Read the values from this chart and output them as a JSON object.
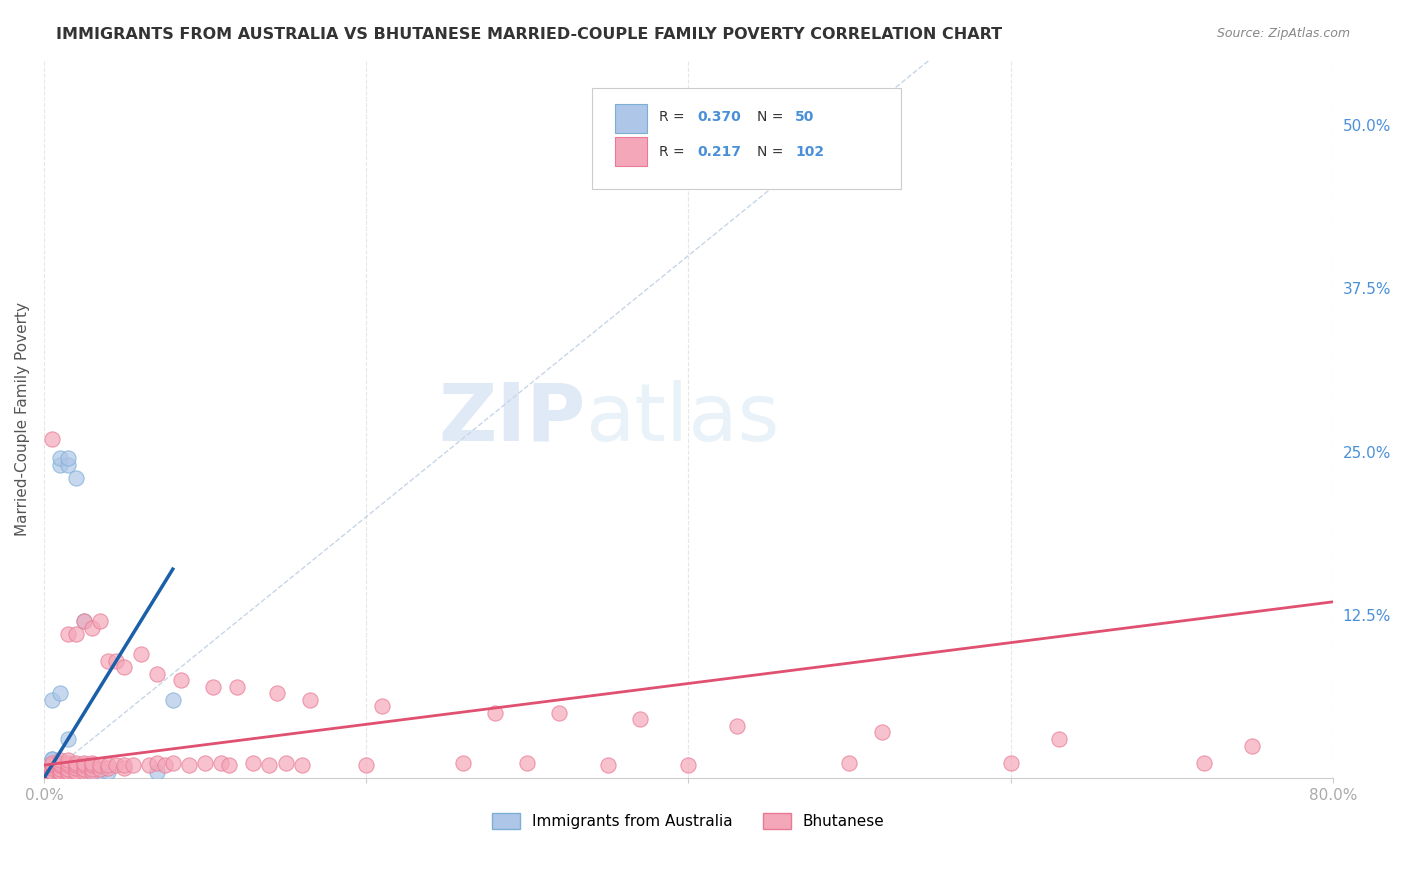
{
  "title": "IMMIGRANTS FROM AUSTRALIA VS BHUTANESE MARRIED-COUPLE FAMILY POVERTY CORRELATION CHART",
  "source": "Source: ZipAtlas.com",
  "xlabel": "",
  "ylabel": "Married-Couple Family Poverty",
  "xlim": [
    0,
    0.8
  ],
  "ylim": [
    0,
    0.55
  ],
  "xticks": [
    0.0,
    0.2,
    0.4,
    0.6,
    0.8
  ],
  "xtick_labels": [
    "0.0%",
    "",
    "",
    "",
    "80.0%"
  ],
  "right_yticks": [
    0.0,
    0.125,
    0.25,
    0.375,
    0.5
  ],
  "right_ytick_labels": [
    "",
    "12.5%",
    "25.0%",
    "37.5%",
    "50.0%"
  ],
  "watermark_zip": "ZIP",
  "watermark_atlas": "atlas",
  "legend_entries": [
    {
      "label": "Immigrants from Australia",
      "color": "#aec6e8",
      "R": "0.370",
      "N": "50"
    },
    {
      "label": "Bhutanese",
      "color": "#f4a7b9",
      "R": "0.217",
      "N": "102"
    }
  ],
  "blue_scatter_x": [
    0.005,
    0.005,
    0.005,
    0.005,
    0.005,
    0.005,
    0.005,
    0.005,
    0.005,
    0.005,
    0.005,
    0.005,
    0.005,
    0.005,
    0.005,
    0.005,
    0.005,
    0.005,
    0.005,
    0.005,
    0.005,
    0.005,
    0.005,
    0.005,
    0.005,
    0.005,
    0.005,
    0.005,
    0.01,
    0.01,
    0.01,
    0.01,
    0.01,
    0.01,
    0.01,
    0.015,
    0.015,
    0.015,
    0.015,
    0.02,
    0.02,
    0.025,
    0.025,
    0.025,
    0.03,
    0.03,
    0.035,
    0.04,
    0.07,
    0.08
  ],
  "blue_scatter_y": [
    0.0,
    0.0,
    0.0,
    0.0,
    0.0,
    0.0,
    0.0,
    0.0,
    0.0,
    0.0,
    0.0,
    0.0,
    0.0,
    0.0,
    0.0,
    0.0,
    0.0,
    0.005,
    0.005,
    0.005,
    0.005,
    0.01,
    0.01,
    0.01,
    0.01,
    0.015,
    0.015,
    0.06,
    0.0,
    0.0,
    0.005,
    0.01,
    0.065,
    0.24,
    0.245,
    0.0,
    0.03,
    0.24,
    0.245,
    0.0,
    0.23,
    0.005,
    0.01,
    0.12,
    0.005,
    0.01,
    0.005,
    0.005,
    0.005,
    0.06
  ],
  "pink_scatter_x": [
    0.005,
    0.005,
    0.005,
    0.005,
    0.005,
    0.005,
    0.005,
    0.005,
    0.005,
    0.005,
    0.005,
    0.005,
    0.005,
    0.005,
    0.005,
    0.005,
    0.005,
    0.005,
    0.005,
    0.005,
    0.01,
    0.01,
    0.01,
    0.01,
    0.01,
    0.01,
    0.01,
    0.01,
    0.01,
    0.01,
    0.015,
    0.015,
    0.015,
    0.015,
    0.015,
    0.015,
    0.015,
    0.015,
    0.02,
    0.02,
    0.02,
    0.02,
    0.02,
    0.02,
    0.02,
    0.025,
    0.025,
    0.025,
    0.025,
    0.025,
    0.03,
    0.03,
    0.03,
    0.03,
    0.03,
    0.035,
    0.035,
    0.035,
    0.04,
    0.04,
    0.04,
    0.045,
    0.045,
    0.05,
    0.05,
    0.05,
    0.055,
    0.06,
    0.065,
    0.07,
    0.07,
    0.075,
    0.08,
    0.085,
    0.09,
    0.1,
    0.105,
    0.11,
    0.115,
    0.12,
    0.13,
    0.14,
    0.145,
    0.15,
    0.16,
    0.165,
    0.2,
    0.21,
    0.26,
    0.28,
    0.3,
    0.32,
    0.35,
    0.37,
    0.4,
    0.43,
    0.5,
    0.52,
    0.6,
    0.63,
    0.72,
    0.75
  ],
  "pink_scatter_y": [
    0.0,
    0.0,
    0.0,
    0.0,
    0.0,
    0.0,
    0.0,
    0.0,
    0.0,
    0.0,
    0.005,
    0.005,
    0.005,
    0.005,
    0.005,
    0.008,
    0.01,
    0.01,
    0.012,
    0.26,
    0.0,
    0.0,
    0.0,
    0.005,
    0.005,
    0.007,
    0.01,
    0.01,
    0.012,
    0.014,
    0.0,
    0.005,
    0.005,
    0.007,
    0.01,
    0.012,
    0.014,
    0.11,
    0.0,
    0.005,
    0.005,
    0.008,
    0.01,
    0.012,
    0.11,
    0.005,
    0.007,
    0.01,
    0.012,
    0.12,
    0.005,
    0.007,
    0.01,
    0.012,
    0.115,
    0.007,
    0.01,
    0.12,
    0.008,
    0.01,
    0.09,
    0.01,
    0.09,
    0.008,
    0.01,
    0.085,
    0.01,
    0.095,
    0.01,
    0.012,
    0.08,
    0.01,
    0.012,
    0.075,
    0.01,
    0.012,
    0.07,
    0.012,
    0.01,
    0.07,
    0.012,
    0.01,
    0.065,
    0.012,
    0.01,
    0.06,
    0.01,
    0.055,
    0.012,
    0.05,
    0.012,
    0.05,
    0.01,
    0.045,
    0.01,
    0.04,
    0.012,
    0.035,
    0.012,
    0.03,
    0.012,
    0.025
  ],
  "blue_line_x": [
    0.0,
    0.08
  ],
  "blue_line_y": [
    0.0,
    0.16
  ],
  "pink_line_x": [
    0.0,
    0.8
  ],
  "pink_line_y": [
    0.01,
    0.135
  ],
  "diag_line_x": [
    0.0,
    0.55
  ],
  "diag_line_y": [
    0.0,
    0.55
  ],
  "bg_color": "#ffffff",
  "grid_color": "#e0e0e0",
  "title_color": "#333333",
  "axis_label_color": "#555555",
  "right_axis_color": "#4a90d9",
  "blue_scatter_color": "#aec6e8",
  "blue_scatter_edge": "#7bafd4",
  "pink_scatter_color": "#f4a7b9",
  "pink_scatter_edge": "#e87a95",
  "blue_line_color": "#1a5fa8",
  "pink_line_color": "#e05070",
  "diag_line_color": "#b0c4de",
  "legend_R_color": "#4a90d9",
  "legend_N_color": "#4a90d9"
}
